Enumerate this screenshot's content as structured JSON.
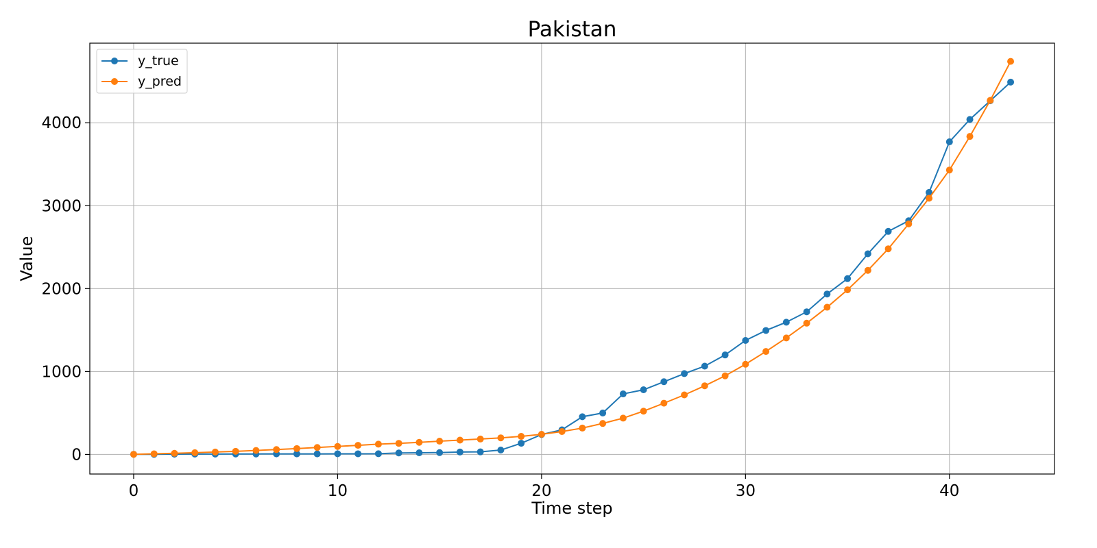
{
  "chart_data": {
    "type": "line",
    "title": "Pakistan",
    "xlabel": "Time step",
    "ylabel": "Value",
    "xlim": [
      -2.15,
      45.15
    ],
    "ylim": [
      -236,
      4960
    ],
    "xticks": [
      0,
      10,
      20,
      30,
      40
    ],
    "yticks": [
      0,
      1000,
      2000,
      3000,
      4000
    ],
    "grid": true,
    "legend_position": "top-left",
    "x": [
      0,
      1,
      2,
      3,
      4,
      5,
      6,
      7,
      8,
      9,
      10,
      11,
      12,
      13,
      14,
      15,
      16,
      17,
      18,
      19,
      20,
      21,
      22,
      23,
      24,
      25,
      26,
      27,
      28,
      29,
      30,
      31,
      32,
      33,
      34,
      35,
      36,
      37,
      38,
      39,
      40,
      41,
      42,
      43
    ],
    "series": [
      {
        "name": "y_true",
        "color": "#1f77b4",
        "values": [
          2,
          2,
          4,
          5,
          5,
          6,
          6,
          7,
          7,
          7,
          8,
          8,
          9,
          18,
          20,
          22,
          29,
          31,
          53,
          135,
          240,
          297,
          455,
          500,
          730,
          780,
          877,
          975,
          1065,
          1200,
          1375,
          1495,
          1595,
          1720,
          1935,
          2120,
          2420,
          2690,
          2818,
          3160,
          3770,
          4040,
          4265,
          4490
        ]
      },
      {
        "name": "y_pred",
        "color": "#ff7f0e",
        "values": [
          2,
          8,
          14,
          21,
          29,
          38,
          48,
          59,
          71,
          84,
          97,
          110,
          124,
          134,
          146,
          160,
          173,
          186,
          200,
          218,
          243,
          276,
          318,
          374,
          438,
          522,
          618,
          718,
          828,
          948,
          1088,
          1242,
          1405,
          1583,
          1775,
          1985,
          2220,
          2480,
          2780,
          3090,
          3430,
          3835,
          4270,
          4740
        ]
      }
    ]
  }
}
